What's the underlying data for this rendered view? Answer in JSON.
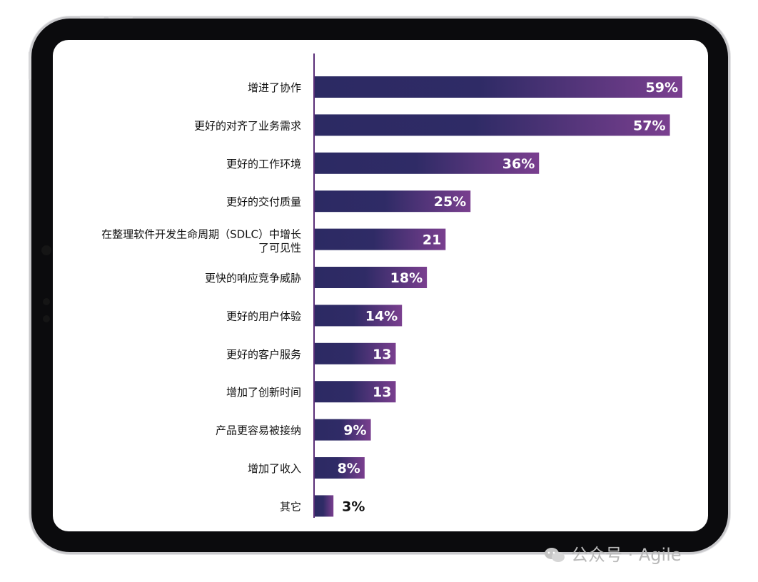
{
  "watermark": {
    "icon": "wechat-icon",
    "text": "公众号 · Agile"
  },
  "chart_data": {
    "type": "bar",
    "orientation": "horizontal",
    "categories": [
      "增进了协作",
      "更好的对齐了业务需求",
      "更好的工作环境",
      "更好的交付质量",
      "在整理软件开发生命周期（SDLC）中增长了可见性",
      "更快的响应竞争威胁",
      "更好的用户体验",
      "更好的客户服务",
      "增加了创新时间",
      "产品更容易被接纳",
      "增加了收入",
      "其它"
    ],
    "values": [
      59,
      57,
      36,
      25,
      21,
      18,
      14,
      13,
      13,
      9,
      8,
      3
    ],
    "value_labels": [
      "59%",
      "57%",
      "36%",
      "25%",
      "21",
      "18%",
      "14%",
      "13",
      "13",
      "9%",
      "8%",
      "3%"
    ],
    "unit": "%",
    "xlim": [
      0,
      62
    ],
    "colors": {
      "bar_start": "#2c2a63",
      "bar_end": "#7a3f8f",
      "axis": "#5a2d78"
    },
    "grid": false,
    "legend": "none"
  }
}
